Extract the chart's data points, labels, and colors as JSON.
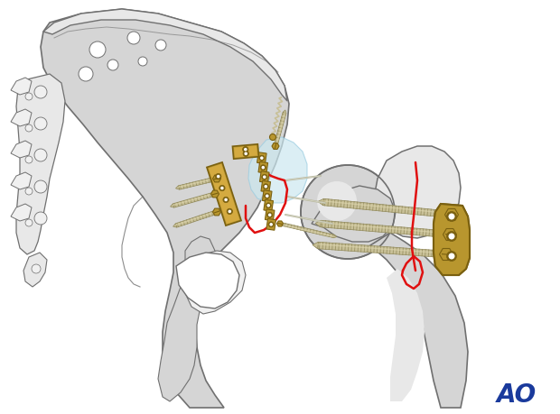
{
  "bg_color": "#ffffff",
  "bone_color": "#d5d5d5",
  "bone_outline": "#707070",
  "bone_light": "#e8e8e8",
  "bone_lighter": "#f0f0f0",
  "gold_color": "#b8962e",
  "gold_light": "#d4aa40",
  "gold_dark": "#7a6010",
  "screw_color": "#c8c098",
  "screw_light": "#e0d8b0",
  "screw_dark": "#908858",
  "red_line": "#e01010",
  "blue_color": "#1a3a9c",
  "ao_text": "AO",
  "cart_color": "#cce8f0",
  "cart_edge": "#99cce0"
}
